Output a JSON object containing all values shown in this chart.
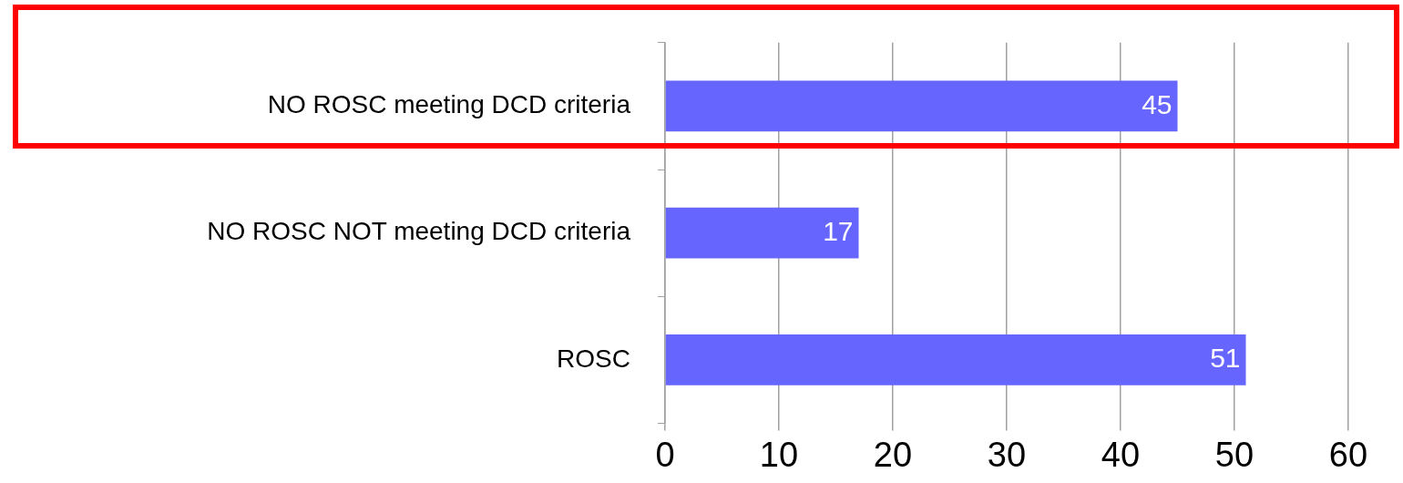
{
  "chart_data": {
    "type": "bar",
    "orientation": "horizontal",
    "categories": [
      "NO ROSC meeting DCD criteria",
      "NO ROSC NOT meeting DCD criteria",
      "ROSC"
    ],
    "values": [
      45,
      17,
      51
    ],
    "color": "#6666ff",
    "xlim": [
      0,
      60
    ],
    "xticks": [
      0,
      10,
      20,
      30,
      40,
      50,
      60
    ],
    "grid": "x",
    "data_labels": true
  }
}
